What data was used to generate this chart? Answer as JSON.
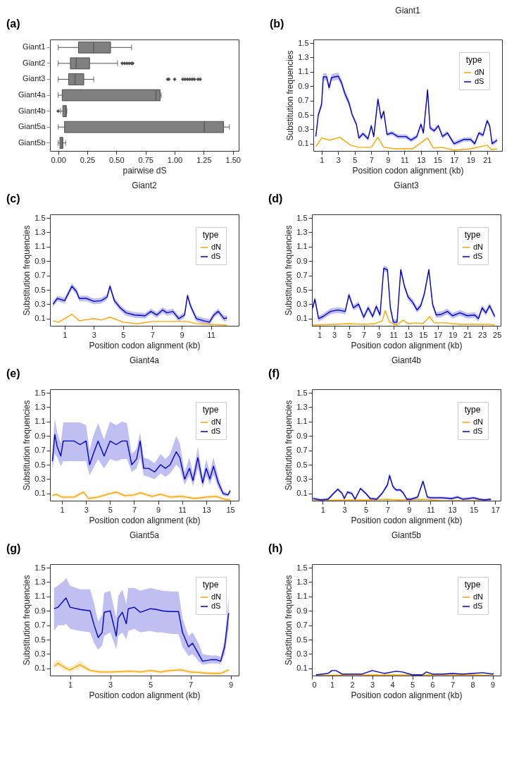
{
  "chart_data": [
    {
      "type": "box",
      "orientation": "horizontal",
      "annotations": [
        "(a)"
      ],
      "xlabel": "pairwise dS",
      "categories": [
        "Giant1",
        "Giant2",
        "Giant3",
        "Giant4a",
        "Giant4b",
        "Giant5a",
        "Giant5b"
      ],
      "color": "#808080",
      "xlim": [
        -0.07,
        1.55
      ],
      "xticks": [
        {
          "value": 0,
          "label": "0.00"
        },
        {
          "value": 0.25,
          "label": "0.25"
        },
        {
          "value": 0.5,
          "label": "0.50"
        },
        {
          "value": 0.75,
          "label": "0.75"
        },
        {
          "value": 1,
          "label": "1.00"
        },
        {
          "value": 1.25,
          "label": "1.25"
        },
        {
          "value": 1.5,
          "label": "1.50"
        }
      ],
      "grid": false,
      "boxes": [
        {
          "low": 0,
          "q1": 0.175,
          "median": 0.305,
          "q3": 0.45,
          "high": 0.63
        },
        {
          "low": 0,
          "q1": 0.105,
          "median": 0.155,
          "q3": 0.27,
          "high": 0.51,
          "outliers": [
            0.55,
            0.57,
            0.59,
            0.61,
            0.63,
            0.64
          ]
        },
        {
          "low": 0,
          "q1": 0.09,
          "median": 0.145,
          "q3": 0.22,
          "high": 0.305,
          "outliers": [
            0.94,
            0.95,
            1.0,
            1.07,
            1.09,
            1.11,
            1.13,
            1.15,
            1.17,
            1.2,
            1.22
          ]
        },
        {
          "low": 0,
          "q1": 0.035,
          "median": 0.84,
          "q3": 0.875,
          "high": 0.885
        },
        {
          "low": 0.02,
          "q1": 0.04,
          "median": 0.065,
          "q3": 0.07,
          "high": 0.075,
          "outliers": [
            0.0
          ]
        },
        {
          "low": 0,
          "q1": 0.055,
          "median": 1.255,
          "q3": 1.42,
          "high": 1.47
        },
        {
          "low": 0,
          "q1": 0.015,
          "median": 0.035,
          "q3": 0.04,
          "high": 0.065
        }
      ]
    },
    {
      "type": "line",
      "title": "Giant1",
      "annotations": [
        "(b)"
      ],
      "xlabel": "Position codon alignment (kb)",
      "ylabel": "Substitution frequencies",
      "legend_title": "type",
      "legend": "top right",
      "grid": false,
      "xlim": [
        0,
        22.8
      ],
      "xticks": [
        1,
        3,
        5,
        7,
        9,
        11,
        13,
        15,
        17,
        19,
        21
      ],
      "ylim": [
        0,
        1.55
      ],
      "yticks": [
        0.1,
        0.3,
        0.5,
        0.7,
        0.9,
        1.1,
        1.3,
        1.5
      ],
      "series": [
        {
          "name": "dN",
          "color": "#ffa500",
          "x": [
            0.3,
            1.0,
            2.0,
            3.2,
            4.5,
            5.5,
            7.0,
            7.8,
            8.5,
            10,
            12,
            13.8,
            14.5,
            15.5,
            17,
            19,
            21,
            21.5,
            22.2
          ],
          "values": [
            0.06,
            0.18,
            0.15,
            0.19,
            0.08,
            0.05,
            0.05,
            0.19,
            0.05,
            0.03,
            0.03,
            0.18,
            0.04,
            0.05,
            0.01,
            0.03,
            0.08,
            0.02,
            0.03
          ]
        },
        {
          "name": "dS",
          "color": "#0000cd",
          "x": [
            0.3,
            0.6,
            1.0,
            1.2,
            1.6,
            1.9,
            2.2,
            3.0,
            3.4,
            3.8,
            4.3,
            4.7,
            5.2,
            5.5,
            6.0,
            6.6,
            7.0,
            7.3,
            7.8,
            8.2,
            8.5,
            8.9,
            9.5,
            10.2,
            11.2,
            11.8,
            12.5,
            13.0,
            13.3,
            13.8,
            14.1,
            14.6,
            15.1,
            15.6,
            16.2,
            17.0,
            18.2,
            19.0,
            19.5,
            20.0,
            20.5,
            21.0,
            21.3,
            21.6,
            22.2
          ],
          "values": [
            0.2,
            0.5,
            0.65,
            1.03,
            1.03,
            0.88,
            1.02,
            1.04,
            0.95,
            0.8,
            0.67,
            0.5,
            0.37,
            0.18,
            0.24,
            0.17,
            0.35,
            0.2,
            0.72,
            0.45,
            0.55,
            0.23,
            0.25,
            0.2,
            0.2,
            0.15,
            0.2,
            0.37,
            0.25,
            0.85,
            0.32,
            0.28,
            0.35,
            0.2,
            0.25,
            0.1,
            0.16,
            0.16,
            0.1,
            0.25,
            0.22,
            0.42,
            0.35,
            0.1,
            0.15
          ],
          "lower": [
            0.17,
            0.47,
            0.6,
            0.98,
            0.98,
            0.83,
            0.97,
            0.99,
            0.9,
            0.75,
            0.62,
            0.47,
            0.34,
            0.15,
            0.21,
            0.14,
            0.32,
            0.17,
            0.67,
            0.42,
            0.52,
            0.2,
            0.22,
            0.17,
            0.17,
            0.12,
            0.17,
            0.34,
            0.22,
            0.8,
            0.29,
            0.25,
            0.32,
            0.17,
            0.22,
            0.07,
            0.13,
            0.13,
            0.07,
            0.22,
            0.19,
            0.39,
            0.32,
            0.07,
            0.12
          ],
          "upper": [
            0.23,
            0.53,
            0.7,
            1.08,
            1.08,
            0.93,
            1.07,
            1.09,
            1.0,
            0.85,
            0.72,
            0.53,
            0.4,
            0.21,
            0.27,
            0.2,
            0.38,
            0.23,
            0.77,
            0.48,
            0.58,
            0.26,
            0.28,
            0.23,
            0.23,
            0.18,
            0.23,
            0.4,
            0.28,
            0.9,
            0.35,
            0.31,
            0.38,
            0.23,
            0.28,
            0.13,
            0.19,
            0.19,
            0.13,
            0.28,
            0.25,
            0.45,
            0.38,
            0.13,
            0.18
          ]
        }
      ]
    },
    {
      "type": "line",
      "title": "Giant2",
      "annotations": [
        "(c)"
      ],
      "xlabel": "Position codon alignment (kb)",
      "ylabel": "Substitution frequencies",
      "legend_title": "type",
      "legend": "top right",
      "grid": false,
      "xlim": [
        0,
        12.9
      ],
      "xticks": [
        1,
        3,
        5,
        7,
        9,
        11
      ],
      "ylim": [
        0,
        1.55
      ],
      "yticks": [
        0.1,
        0.3,
        0.5,
        0.7,
        0.9,
        1.1,
        1.3,
        1.5
      ],
      "series": [
        {
          "name": "dN",
          "color": "#ffa500",
          "x": [
            0.2,
            0.6,
            1.5,
            2.0,
            3.0,
            3.5,
            4.1,
            5.0,
            6.0,
            7.0,
            8.0,
            9.4,
            10.0,
            11.0,
            12.1
          ],
          "values": [
            0.07,
            0.05,
            0.16,
            0.07,
            0.1,
            0.08,
            0.12,
            0.05,
            0.03,
            0.06,
            0.06,
            0.06,
            0.03,
            0.02,
            0.01
          ]
        },
        {
          "name": "dS",
          "color": "#0000cd",
          "x": [
            0.2,
            0.5,
            1.0,
            1.5,
            1.8,
            2.0,
            2.5,
            3.0,
            3.5,
            3.9,
            4.1,
            4.4,
            4.8,
            5.2,
            5.8,
            6.5,
            6.9,
            7.3,
            7.7,
            8.0,
            8.4,
            8.8,
            9.2,
            9.4,
            9.6,
            10.0,
            10.5,
            10.9,
            11.2,
            11.5,
            11.9,
            12.1
          ],
          "values": [
            0.3,
            0.38,
            0.35,
            0.55,
            0.48,
            0.38,
            0.38,
            0.34,
            0.35,
            0.4,
            0.55,
            0.35,
            0.25,
            0.18,
            0.15,
            0.14,
            0.2,
            0.15,
            0.22,
            0.18,
            0.2,
            0.1,
            0.15,
            0.42,
            0.28,
            0.1,
            0.07,
            0.05,
            0.15,
            0.2,
            0.1,
            0.11
          ],
          "lower": [
            0.26,
            0.34,
            0.31,
            0.51,
            0.44,
            0.34,
            0.34,
            0.3,
            0.31,
            0.36,
            0.51,
            0.31,
            0.21,
            0.14,
            0.11,
            0.1,
            0.16,
            0.11,
            0.18,
            0.14,
            0.16,
            0.06,
            0.11,
            0.38,
            0.24,
            0.06,
            0.03,
            0.01,
            0.11,
            0.16,
            0.06,
            0.07
          ],
          "upper": [
            0.34,
            0.42,
            0.39,
            0.59,
            0.52,
            0.42,
            0.42,
            0.38,
            0.39,
            0.44,
            0.59,
            0.39,
            0.29,
            0.22,
            0.19,
            0.18,
            0.24,
            0.19,
            0.26,
            0.22,
            0.24,
            0.14,
            0.19,
            0.46,
            0.32,
            0.14,
            0.11,
            0.09,
            0.19,
            0.24,
            0.14,
            0.15
          ]
        }
      ]
    },
    {
      "type": "line",
      "title": "Giant3",
      "annotations": [
        "(d)"
      ],
      "xlabel": "Position codon alignment (kb)",
      "ylabel": "Substitution frequencies",
      "legend_title": "type",
      "legend": "top right",
      "grid": false,
      "xlim": [
        0,
        25.5
      ],
      "xticks": [
        1,
        3,
        5,
        7,
        9,
        11,
        13,
        15,
        17,
        19,
        21,
        23,
        25
      ],
      "ylim": [
        0,
        1.55
      ],
      "yticks": [
        0.1,
        0.3,
        0.5,
        0.7,
        0.9,
        1.1,
        1.3,
        1.5
      ],
      "series": [
        {
          "name": "dN",
          "color": "#ffa500",
          "x": [
            0.1,
            3,
            5,
            7,
            8.5,
            9.5,
            9.9,
            10.5,
            11.5,
            12.3,
            13,
            14,
            15,
            15.9,
            16.5,
            18,
            20,
            22,
            24,
            24.7
          ],
          "values": [
            0.01,
            0.02,
            0.03,
            0.02,
            0.03,
            0.07,
            0.21,
            0.05,
            0.01,
            0.08,
            0.03,
            0.04,
            0.03,
            0.13,
            0.04,
            0.04,
            0.02,
            0.02,
            0.02,
            0.01
          ]
        },
        {
          "name": "dS",
          "color": "#0000cd",
          "x": [
            0.1,
            0.4,
            0.9,
            1.5,
            2.5,
            3.5,
            4.5,
            5.0,
            5.6,
            6.3,
            7.0,
            7.6,
            8.2,
            8.7,
            9.2,
            9.7,
            10.2,
            10.6,
            11.0,
            11.5,
            12.0,
            12.5,
            13.0,
            13.6,
            14.2,
            14.7,
            15.2,
            15.8,
            16.3,
            16.8,
            17.5,
            18.3,
            19.0,
            20.0,
            21.0,
            22.0,
            22.5,
            23.0,
            23.5,
            24.0,
            24.7
          ],
          "values": [
            0.25,
            0.37,
            0.1,
            0.13,
            0.2,
            0.22,
            0.2,
            0.43,
            0.25,
            0.3,
            0.12,
            0.25,
            0.13,
            0.27,
            0.15,
            0.8,
            0.78,
            0.25,
            0.05,
            0.05,
            0.78,
            0.55,
            0.4,
            0.33,
            0.22,
            0.28,
            0.45,
            0.78,
            0.3,
            0.15,
            0.16,
            0.2,
            0.14,
            0.18,
            0.14,
            0.15,
            0.1,
            0.25,
            0.18,
            0.28,
            0.13
          ],
          "lower": [
            0.21,
            0.33,
            0.06,
            0.09,
            0.16,
            0.18,
            0.16,
            0.39,
            0.21,
            0.26,
            0.08,
            0.21,
            0.09,
            0.23,
            0.11,
            0.76,
            0.74,
            0.21,
            0.01,
            0.01,
            0.74,
            0.51,
            0.36,
            0.29,
            0.18,
            0.24,
            0.41,
            0.74,
            0.26,
            0.11,
            0.12,
            0.16,
            0.1,
            0.14,
            0.1,
            0.11,
            0.06,
            0.21,
            0.14,
            0.24,
            0.09
          ],
          "upper": [
            0.29,
            0.41,
            0.14,
            0.17,
            0.24,
            0.26,
            0.24,
            0.47,
            0.29,
            0.34,
            0.16,
            0.29,
            0.17,
            0.31,
            0.19,
            0.84,
            0.82,
            0.29,
            0.09,
            0.09,
            0.82,
            0.59,
            0.44,
            0.37,
            0.26,
            0.32,
            0.49,
            0.82,
            0.34,
            0.19,
            0.2,
            0.24,
            0.18,
            0.22,
            0.18,
            0.19,
            0.14,
            0.29,
            0.22,
            0.32,
            0.17
          ]
        }
      ]
    },
    {
      "type": "line",
      "title": "Giant4a",
      "annotations": [
        "(e)"
      ],
      "xlabel": "Position codon alignment (kb)",
      "ylabel": "Substitution frequencies",
      "legend_title": "type",
      "legend": "top right",
      "grid": false,
      "xlim": [
        0,
        15.7
      ],
      "xticks": [
        1,
        3,
        5,
        7,
        9,
        11,
        13,
        15
      ],
      "ylim": [
        0,
        1.55
      ],
      "yticks": [
        0.1,
        0.3,
        0.5,
        0.7,
        0.9,
        1.1,
        1.3,
        1.5
      ],
      "series": [
        {
          "name": "dN",
          "color": "#ffa500",
          "x": [
            0.2,
            0.5,
            1.0,
            2.0,
            2.8,
            3.2,
            4.0,
            5.0,
            5.5,
            6.2,
            7.0,
            7.5,
            8.5,
            9.2,
            10,
            11,
            12,
            13,
            13.8,
            14.5,
            15.0
          ],
          "values": [
            0.07,
            0.09,
            0.05,
            0.05,
            0.12,
            0.03,
            0.05,
            0.1,
            0.12,
            0.07,
            0.08,
            0.11,
            0.06,
            0.09,
            0.05,
            0.06,
            0.03,
            0.05,
            0.06,
            0.02,
            0.01
          ],
          "lower": [
            0.05,
            0.07,
            0.03,
            0.03,
            0.1,
            0.01,
            0.03,
            0.08,
            0.1,
            0.05,
            0.06,
            0.09,
            0.04,
            0.07,
            0.03,
            0.04,
            0.01,
            0.03,
            0.04,
            0.0,
            0.0
          ],
          "upper": [
            0.09,
            0.11,
            0.07,
            0.07,
            0.14,
            0.05,
            0.07,
            0.12,
            0.14,
            0.09,
            0.1,
            0.13,
            0.08,
            0.11,
            0.07,
            0.08,
            0.05,
            0.07,
            0.08,
            0.04,
            0.03
          ]
        },
        {
          "name": "dS",
          "color": "#0000cd",
          "x": [
            0.2,
            0.4,
            0.6,
            0.9,
            1.1,
            1.5,
            2.0,
            2.5,
            3.0,
            3.3,
            3.6,
            4.0,
            4.5,
            5.0,
            5.5,
            6.0,
            6.4,
            6.8,
            7.2,
            7.5,
            7.8,
            8.2,
            8.7,
            9.2,
            9.6,
            10.0,
            10.5,
            10.8,
            11.2,
            11.6,
            11.9,
            12.3,
            12.7,
            13.0,
            13.3,
            13.6,
            14.0,
            14.4,
            14.8,
            15.0
          ],
          "values": [
            0.55,
            0.92,
            0.75,
            0.62,
            0.83,
            0.83,
            0.83,
            0.78,
            0.83,
            0.5,
            0.65,
            0.83,
            0.62,
            0.83,
            0.78,
            0.83,
            0.83,
            0.5,
            0.58,
            0.83,
            0.45,
            0.45,
            0.4,
            0.5,
            0.45,
            0.5,
            0.68,
            0.6,
            0.3,
            0.45,
            0.28,
            0.6,
            0.25,
            0.45,
            0.3,
            0.48,
            0.25,
            0.1,
            0.08,
            0.14
          ],
          "lower": [
            0.43,
            0.65,
            0.6,
            0.48,
            0.55,
            0.55,
            0.55,
            0.55,
            0.55,
            0.35,
            0.45,
            0.58,
            0.45,
            0.58,
            0.55,
            0.58,
            0.58,
            0.4,
            0.45,
            0.6,
            0.35,
            0.33,
            0.3,
            0.38,
            0.33,
            0.38,
            0.5,
            0.45,
            0.22,
            0.35,
            0.2,
            0.45,
            0.18,
            0.35,
            0.22,
            0.36,
            0.18,
            0.07,
            0.06,
            0.1
          ],
          "upper": [
            0.7,
            1.15,
            0.95,
            0.8,
            1.09,
            1.09,
            1.09,
            1.09,
            1.05,
            0.7,
            0.9,
            1.08,
            0.85,
            1.1,
            1.05,
            1.1,
            1.08,
            0.65,
            0.72,
            0.95,
            0.6,
            0.58,
            0.52,
            0.65,
            0.58,
            0.65,
            0.9,
            0.8,
            0.4,
            0.6,
            0.38,
            0.75,
            0.33,
            0.58,
            0.4,
            0.6,
            0.33,
            0.14,
            0.1,
            0.17
          ]
        }
      ]
    },
    {
      "type": "line",
      "title": "Giant4b",
      "annotations": [
        "(f)"
      ],
      "xlabel": "Position codon alignment (kb)",
      "ylabel": "Substitution frequencies",
      "legend_title": "type",
      "legend": "top right",
      "grid": false,
      "xlim": [
        0,
        17.5
      ],
      "xticks": [
        1,
        3,
        5,
        7,
        9,
        11,
        13,
        15,
        17
      ],
      "ylim": [
        0,
        1.55
      ],
      "yticks": [
        0.1,
        0.3,
        0.5,
        0.7,
        0.9,
        1.1,
        1.3,
        1.5
      ],
      "series": [
        {
          "name": "dN",
          "color": "#ffa500",
          "x": [
            0.1,
            3,
            5,
            7,
            8,
            10.3,
            12,
            14,
            16.6
          ],
          "values": [
            0.0,
            0.01,
            0.01,
            0.02,
            0.01,
            0.02,
            0.0,
            0.0,
            0.0
          ]
        },
        {
          "name": "dS",
          "color": "#0000cd",
          "x": [
            0.1,
            0.8,
            1.5,
            2.0,
            2.4,
            2.8,
            3.0,
            3.3,
            3.7,
            4.0,
            4.5,
            5.0,
            5.4,
            6.0,
            6.5,
            7.0,
            7.2,
            7.5,
            7.8,
            8.2,
            8.5,
            8.8,
            9.2,
            9.8,
            10.3,
            10.7,
            11.0,
            12.0,
            13.0,
            13.5,
            14.0,
            15.0,
            15.5,
            16.0,
            16.6
          ],
          "values": [
            0.03,
            0.01,
            0.02,
            0.1,
            0.16,
            0.1,
            0.03,
            0.12,
            0.1,
            0.02,
            0.17,
            0.1,
            0.03,
            0.02,
            0.1,
            0.22,
            0.35,
            0.2,
            0.15,
            0.15,
            0.1,
            0.02,
            0.02,
            0.05,
            0.27,
            0.05,
            0.04,
            0.04,
            0.03,
            0.05,
            0.02,
            0.04,
            0.02,
            0.01,
            0.02
          ],
          "lower": [
            0.01,
            0.0,
            0.0,
            0.08,
            0.14,
            0.08,
            0.01,
            0.1,
            0.08,
            0.0,
            0.15,
            0.08,
            0.01,
            0.0,
            0.08,
            0.19,
            0.31,
            0.17,
            0.13,
            0.13,
            0.08,
            0.0,
            0.0,
            0.03,
            0.24,
            0.03,
            0.02,
            0.02,
            0.01,
            0.03,
            0.0,
            0.02,
            0.0,
            0.0,
            0.0
          ],
          "upper": [
            0.05,
            0.03,
            0.04,
            0.12,
            0.18,
            0.12,
            0.05,
            0.14,
            0.12,
            0.04,
            0.19,
            0.12,
            0.05,
            0.04,
            0.12,
            0.25,
            0.39,
            0.23,
            0.17,
            0.17,
            0.12,
            0.04,
            0.04,
            0.07,
            0.3,
            0.07,
            0.06,
            0.06,
            0.05,
            0.07,
            0.04,
            0.06,
            0.04,
            0.03,
            0.04
          ]
        }
      ]
    },
    {
      "type": "line",
      "title": "Giant5a",
      "annotations": [
        "(g)"
      ],
      "xlabel": "Position codon alignment (kb)",
      "ylabel": "Substitution frequencies",
      "legend_title": "type",
      "legend": "top right",
      "grid": false,
      "xlim": [
        0,
        9.4
      ],
      "xticks": [
        1,
        3,
        5,
        7,
        9
      ],
      "ylim": [
        0,
        1.55
      ],
      "yticks": [
        0.1,
        0.3,
        0.5,
        0.7,
        0.9,
        1.1,
        1.3,
        1.5
      ],
      "series": [
        {
          "name": "dN",
          "color": "#ffa500",
          "x": [
            0.2,
            0.4,
            0.8,
            1.0,
            1.5,
            2.0,
            2.5,
            3.0,
            4.0,
            4.5,
            5.0,
            5.5,
            6.0,
            6.5,
            7.0,
            7.5,
            8.0,
            8.5,
            8.9
          ],
          "values": [
            0.13,
            0.17,
            0.1,
            0.08,
            0.15,
            0.07,
            0.05,
            0.05,
            0.06,
            0.05,
            0.07,
            0.05,
            0.07,
            0.08,
            0.05,
            0.04,
            0.03,
            0.03,
            0.08
          ],
          "lower": [
            0.1,
            0.13,
            0.07,
            0.05,
            0.11,
            0.05,
            0.03,
            0.03,
            0.04,
            0.03,
            0.05,
            0.03,
            0.05,
            0.06,
            0.03,
            0.02,
            0.01,
            0.01,
            0.06
          ],
          "upper": [
            0.18,
            0.22,
            0.13,
            0.11,
            0.2,
            0.09,
            0.07,
            0.07,
            0.08,
            0.07,
            0.09,
            0.07,
            0.09,
            0.1,
            0.07,
            0.06,
            0.05,
            0.05,
            0.1
          ]
        },
        {
          "name": "dS",
          "color": "#0000cd",
          "x": [
            0.2,
            0.4,
            0.7,
            0.8,
            1.0,
            1.5,
            2.0,
            2.2,
            2.4,
            2.6,
            2.7,
            3.0,
            3.3,
            3.4,
            3.6,
            3.8,
            3.9,
            4.2,
            4.5,
            5.0,
            5.3,
            5.6,
            6.0,
            6.4,
            6.6,
            6.9,
            7.1,
            7.4,
            7.6,
            8.0,
            8.3,
            8.5,
            8.7,
            8.9
          ],
          "values": [
            0.93,
            0.95,
            1.05,
            1.08,
            0.95,
            0.92,
            0.9,
            0.7,
            0.53,
            0.6,
            0.88,
            0.9,
            0.55,
            0.8,
            0.88,
            0.72,
            0.93,
            0.95,
            0.88,
            0.93,
            0.92,
            0.9,
            0.89,
            0.89,
            0.6,
            0.4,
            0.45,
            0.3,
            0.2,
            0.22,
            0.22,
            0.2,
            0.4,
            0.87
          ],
          "lower": [
            0.62,
            0.7,
            0.7,
            0.72,
            0.65,
            0.62,
            0.6,
            0.45,
            0.36,
            0.42,
            0.55,
            0.6,
            0.37,
            0.55,
            0.6,
            0.5,
            0.62,
            0.65,
            0.6,
            0.62,
            0.6,
            0.6,
            0.58,
            0.58,
            0.4,
            0.27,
            0.3,
            0.2,
            0.15,
            0.17,
            0.17,
            0.16,
            0.3,
            0.65
          ],
          "upper": [
            1.22,
            1.25,
            1.32,
            1.36,
            1.25,
            1.2,
            1.2,
            1.0,
            0.75,
            0.85,
            1.15,
            1.18,
            0.8,
            1.1,
            1.2,
            1.0,
            1.22,
            1.22,
            1.18,
            1.22,
            1.2,
            1.18,
            1.17,
            1.17,
            0.8,
            0.55,
            0.6,
            0.45,
            0.3,
            0.28,
            0.28,
            0.26,
            0.5,
            1.1
          ]
        }
      ]
    },
    {
      "type": "line",
      "title": "Giant5b",
      "annotations": [
        "(h)"
      ],
      "xlabel": "Position codon alignment (kb)",
      "ylabel": "Substitution frequencies",
      "legend_title": "type",
      "legend": "top right",
      "grid": false,
      "xlim": [
        0,
        9.4
      ],
      "xticks": [
        0,
        1,
        2,
        3,
        4,
        5,
        6,
        7,
        8,
        9
      ],
      "ylim": [
        0,
        1.55
      ],
      "yticks": [
        0.1,
        0.3,
        0.5,
        0.7,
        0.9,
        1.1,
        1.3,
        1.5
      ],
      "series": [
        {
          "name": "dN",
          "color": "#ffa500",
          "x": [
            0.2,
            2,
            4,
            6,
            8,
            9.05
          ],
          "values": [
            0.0,
            0.01,
            0.01,
            0.01,
            0.01,
            0.0
          ]
        },
        {
          "name": "dS",
          "color": "#0000cd",
          "x": [
            0.2,
            0.8,
            1.0,
            1.2,
            1.5,
            2.0,
            2.5,
            2.8,
            3.0,
            3.3,
            3.6,
            4.0,
            4.2,
            4.5,
            5.0,
            5.5,
            5.7,
            6.0,
            6.5,
            7.0,
            7.5,
            8.0,
            8.5,
            9.0,
            9.05
          ],
          "values": [
            0.01,
            0.03,
            0.07,
            0.07,
            0.02,
            0.02,
            0.02,
            0.05,
            0.07,
            0.05,
            0.03,
            0.05,
            0.06,
            0.05,
            0.01,
            0.01,
            0.05,
            0.02,
            0.02,
            0.03,
            0.02,
            0.03,
            0.04,
            0.02,
            0.03
          ]
        }
      ]
    }
  ]
}
